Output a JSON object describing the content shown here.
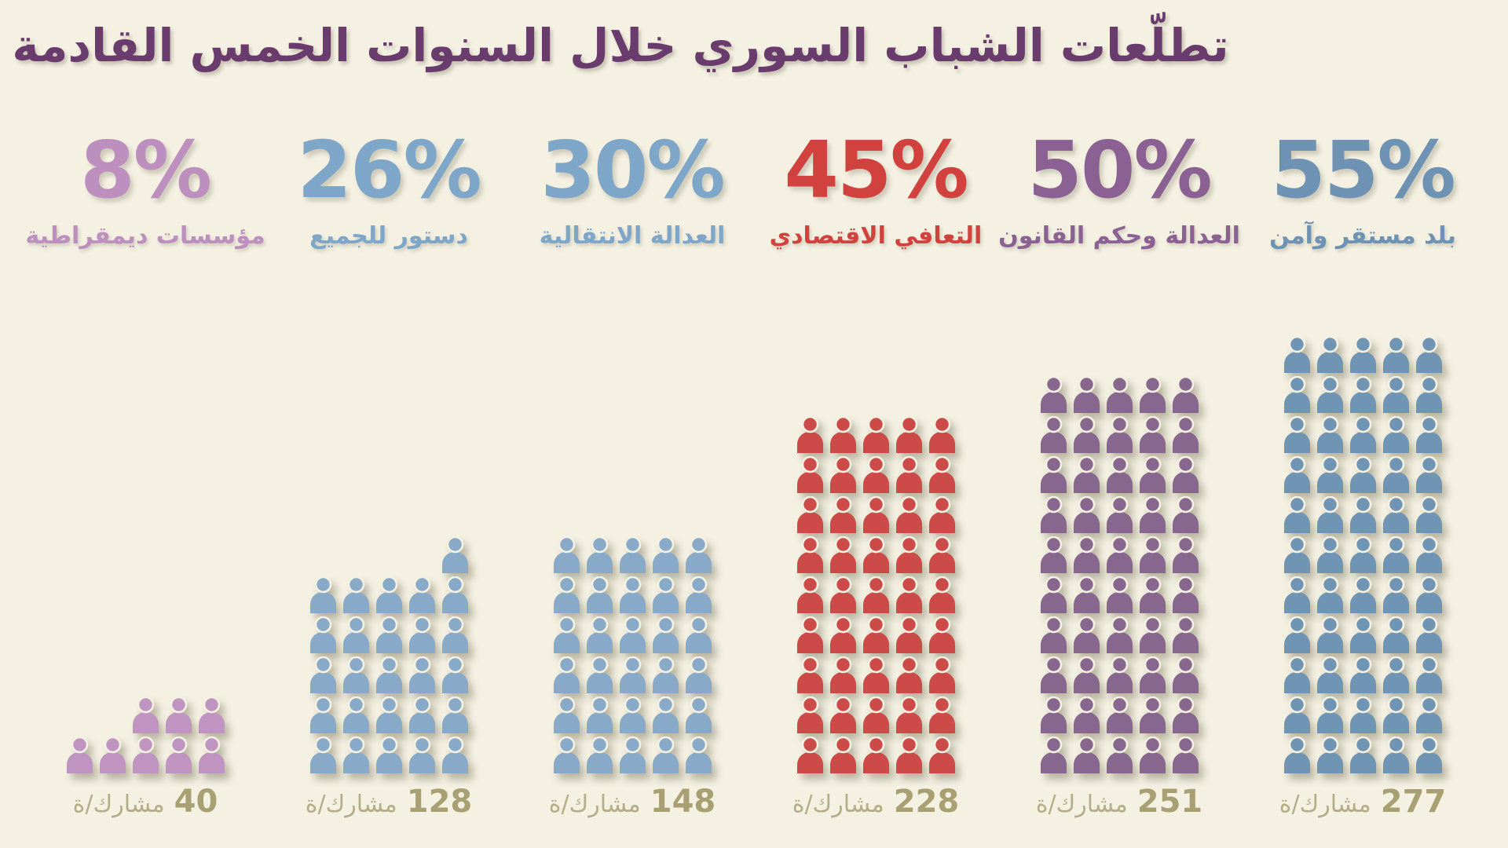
{
  "title": "تطلّعات الشباب السوري خلال السنوات الخمس القادمة",
  "participants_suffix": "مشارك/ة",
  "colors": {
    "background": "#f4f1e3",
    "title": "#6a3c6d",
    "count_number": "#a89f73",
    "count_word": "#b5ad87"
  },
  "chart_data": {
    "type": "pictogram",
    "icon": "person",
    "percent_per_icon": 1,
    "icons_per_row": 5,
    "fill_direction": "right-to-left, bottom-up",
    "categories": [
      {
        "label": "مؤسسات ديمقراطية",
        "percent": 8,
        "participants": 40,
        "icon_color": "#bf94c0",
        "text_color": "#bd8fbe"
      },
      {
        "label": "دستور للجميع",
        "percent": 26,
        "participants": 128,
        "icon_color": "#88aac8",
        "text_color": "#7ea6c8"
      },
      {
        "label": "العدالة الانتقالية",
        "percent": 30,
        "participants": 148,
        "icon_color": "#88aac8",
        "text_color": "#7ea6c8"
      },
      {
        "label": "التعافي الاقتصادي",
        "percent": 45,
        "participants": 228,
        "icon_color": "#cc4b48",
        "text_color": "#d1413e"
      },
      {
        "label": "العدالة وحكم القانون",
        "percent": 50,
        "participants": 251,
        "icon_color": "#88678f",
        "text_color": "#8b6193"
      },
      {
        "label": "بلد مستقر وآمن",
        "percent": 55,
        "participants": 277,
        "icon_color": "#7094b4",
        "text_color": "#6d92b4"
      }
    ]
  }
}
